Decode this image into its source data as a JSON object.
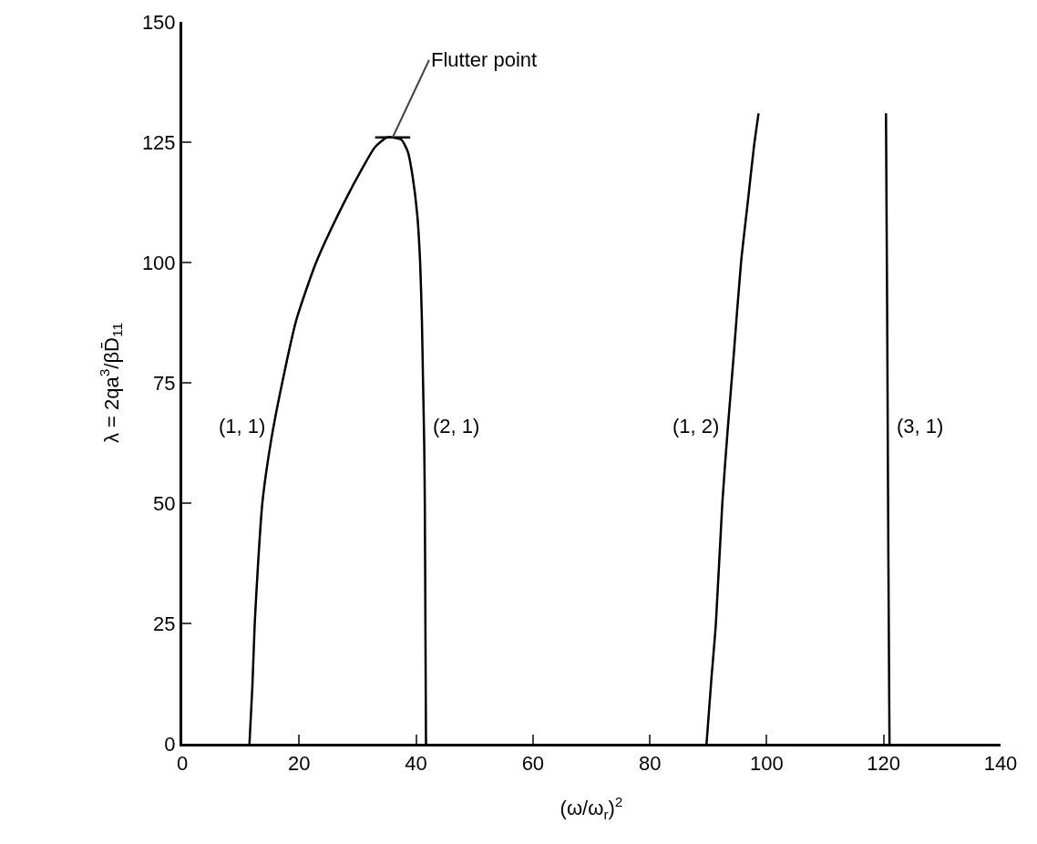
{
  "chart_data": {
    "type": "line",
    "xlabel": "(ω/ω$_{r}$)$^{2}$",
    "ylabel": "λ = 2qa$^{3}$/βD̄$_{11}$",
    "xlim": [
      0,
      140
    ],
    "xticks": [
      0,
      20,
      40,
      60,
      80,
      100,
      120,
      140
    ],
    "ylim": [
      0,
      150
    ],
    "yticks": [
      0,
      25,
      50,
      75,
      100,
      125,
      150
    ],
    "grid": false,
    "legend": false,
    "marker": "none",
    "line_style": "solid",
    "series": [
      {
        "name": "(1, 1)",
        "color": "#000000",
        "x": [
          11.5,
          12.0,
          12.4,
          13.0,
          13.7,
          15.2,
          17.1,
          19.5,
          22.9,
          27.5,
          31.0,
          33.0,
          35.0,
          36.0
        ],
        "values": [
          0,
          12,
          25,
          38,
          50,
          63,
          75,
          88,
          100,
          112,
          120,
          124,
          126,
          126
        ]
      },
      {
        "name": "(2, 1)",
        "color": "#000000",
        "x": [
          36.0,
          37.5,
          38.6,
          39.4,
          40.2,
          40.7,
          41.0,
          41.2,
          41.4,
          41.5,
          41.6,
          41.7
        ],
        "values": [
          126,
          125.5,
          123,
          118,
          110,
          100,
          88,
          75,
          62,
          50,
          25,
          0
        ]
      },
      {
        "name": "(1, 2)",
        "color": "#000000",
        "x": [
          89.7,
          90.5,
          91.3,
          92.4,
          93.3,
          94.3,
          95.6,
          96.8,
          97.8,
          98.6
        ],
        "values": [
          0,
          13,
          25,
          50,
          65,
          80,
          100,
          113,
          124,
          131
        ]
      },
      {
        "name": "(3, 1)",
        "color": "#000000",
        "x": [
          121.0,
          120.9,
          120.8,
          120.7,
          120.6,
          120.5,
          120.4
        ],
        "values": [
          0,
          20,
          40,
          65,
          90,
          110,
          131
        ]
      },
      {
        "color": "#000000",
        "x": [
          33.0,
          39.0
        ],
        "values": [
          126,
          126
        ]
      }
    ],
    "annotations": [
      {
        "text": "Flutter point",
        "x": 36,
        "y": 126
      }
    ]
  }
}
